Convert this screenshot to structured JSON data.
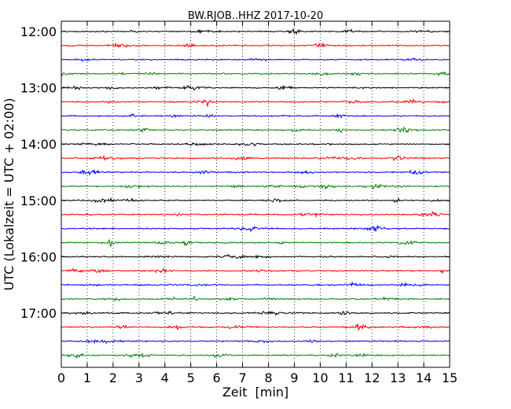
{
  "chart_data": {
    "type": "line",
    "title": "BW.RJOB..HHZ 2017-10-20",
    "xlabel": "Zeit  [min]",
    "ylabel": "UTC (Lokalzeit = UTC + 02:00)",
    "xlim": [
      0,
      15
    ],
    "x_ticks": [
      "0",
      "1",
      "2",
      "3",
      "4",
      "5",
      "6",
      "7",
      "8",
      "9",
      "10",
      "11",
      "12",
      "13",
      "14",
      "15"
    ],
    "y_tick_labels": [
      "12:00",
      "13:00",
      "14:00",
      "15:00",
      "16:00",
      "17:00"
    ],
    "grid": "vertical dotted lines at each minute",
    "trace_colors": [
      "#000000",
      "#ff0000",
      "#0000ff",
      "#008000"
    ],
    "traces": [
      {
        "start": "12:00"
      },
      {
        "start": "12:15"
      },
      {
        "start": "12:30"
      },
      {
        "start": "12:45"
      },
      {
        "start": "13:00"
      },
      {
        "start": "13:15"
      },
      {
        "start": "13:30"
      },
      {
        "start": "13:45"
      },
      {
        "start": "14:00"
      },
      {
        "start": "14:15"
      },
      {
        "start": "14:30"
      },
      {
        "start": "14:45"
      },
      {
        "start": "15:00"
      },
      {
        "start": "15:15"
      },
      {
        "start": "15:30"
      },
      {
        "start": "15:45"
      },
      {
        "start": "16:00"
      },
      {
        "start": "16:15"
      },
      {
        "start": "16:30"
      },
      {
        "start": "16:45"
      },
      {
        "start": "17:00"
      },
      {
        "start": "17:15"
      },
      {
        "start": "17:30"
      },
      {
        "start": "17:45"
      }
    ]
  }
}
